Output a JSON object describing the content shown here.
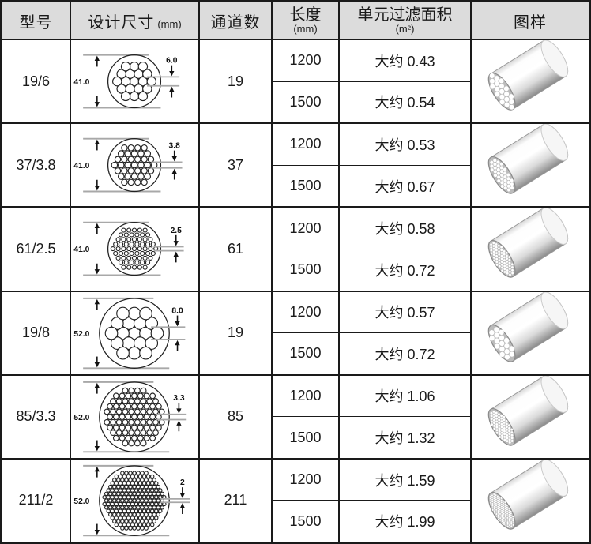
{
  "header": {
    "col_model": "型号",
    "col_design": "设计尺寸",
    "col_design_unit": "(mm)",
    "col_channels": "通道数",
    "col_length": "长度",
    "col_length_unit": "(mm)",
    "col_area": "单元过滤面积",
    "col_area_unit": "(m²)",
    "col_image": "图样"
  },
  "rows": [
    {
      "model": "19/6",
      "dia_label": "41.0",
      "hole_label": "6.0",
      "channels": "19",
      "variants": [
        {
          "length": "1200",
          "area": "大约 0.43"
        },
        {
          "length": "1500",
          "area": "大约 0.54"
        }
      ]
    },
    {
      "model": "37/3.8",
      "dia_label": "41.0",
      "hole_label": "3.8",
      "channels": "37",
      "variants": [
        {
          "length": "1200",
          "area": "大约 0.53"
        },
        {
          "length": "1500",
          "area": "大约 0.67"
        }
      ]
    },
    {
      "model": "61/2.5",
      "dia_label": "41.0",
      "hole_label": "2.5",
      "channels": "61",
      "variants": [
        {
          "length": "1200",
          "area": "大约 0.58"
        },
        {
          "length": "1500",
          "area": "大约 0.72"
        }
      ]
    },
    {
      "model": "19/8",
      "dia_label": "52.0",
      "hole_label": "8.0",
      "channels": "19",
      "variants": [
        {
          "length": "1200",
          "area": "大约 0.57"
        },
        {
          "length": "1500",
          "area": "大约 0.72"
        }
      ]
    },
    {
      "model": "85/3.3",
      "dia_label": "52.0",
      "hole_label": "3.3",
      "channels": "85",
      "variants": [
        {
          "length": "1200",
          "area": "大约 1.06"
        },
        {
          "length": "1500",
          "area": "大约 1.32"
        }
      ]
    },
    {
      "model": "211/2",
      "dia_label": "52.0",
      "hole_label": "2",
      "channels": "211",
      "variants": [
        {
          "length": "1200",
          "area": "大约 1.59"
        },
        {
          "length": "1500",
          "area": "大约 1.99"
        }
      ]
    }
  ],
  "colors": {
    "header_bg": "#dcdcdc",
    "border": "#1a1a1a",
    "dim_line": "#a8a8a8",
    "cylinder_face": "#bcbcbc",
    "cylinder_shade": "#8a8a8a"
  }
}
